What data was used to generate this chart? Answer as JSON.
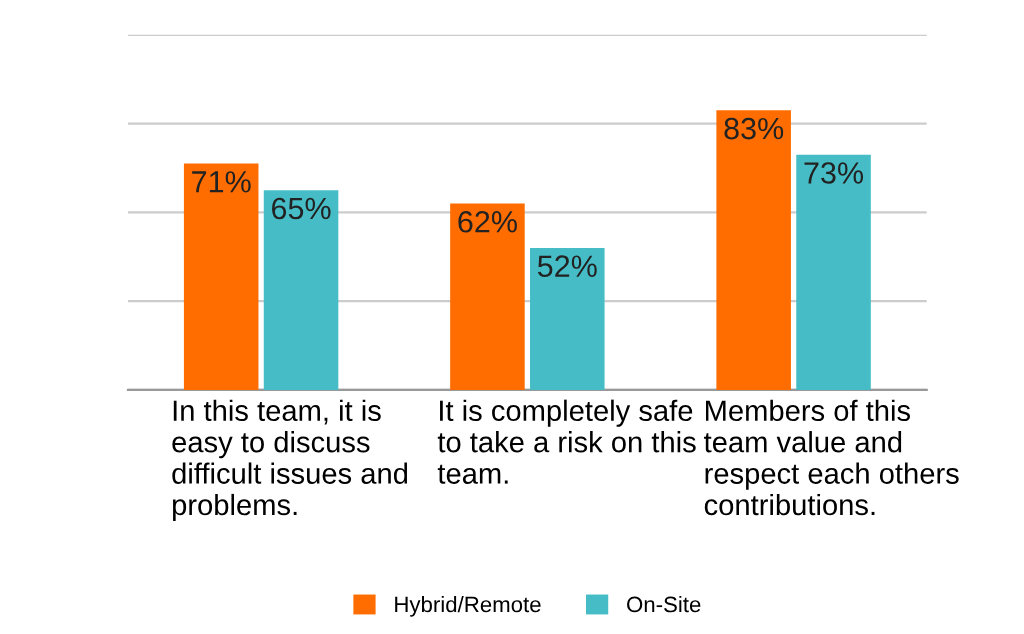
{
  "chart_data": {
    "type": "bar",
    "categories": [
      "In this team, it is\neasy to discuss\ndifficult issues and\nproblems.",
      "It is completely safe\nto take a risk on this\nteam.",
      "Members of this\nteam value and\nrespect each others\ncontributions."
    ],
    "series": [
      {
        "name": "Hybrid/Remote",
        "color": "#ff6d01",
        "values": [
          71,
          62,
          83
        ],
        "value_labels": [
          "71%",
          "62%",
          "83%"
        ]
      },
      {
        "name": "On-Site",
        "color": "#46bdc6",
        "values": [
          65,
          52,
          73
        ],
        "value_labels": [
          "65%",
          "52%",
          "73%"
        ]
      }
    ],
    "ylim": [
      20,
      100
    ],
    "yticks": [
      {
        "value": 20,
        "label": null
      },
      {
        "value": 40,
        "label": null
      },
      {
        "value": 60,
        "label": null
      },
      {
        "value": 80,
        "label": null
      },
      {
        "value": 100,
        "label": null
      }
    ],
    "tick_labels": "x",
    "grid": "y",
    "legend": "bottom"
  }
}
